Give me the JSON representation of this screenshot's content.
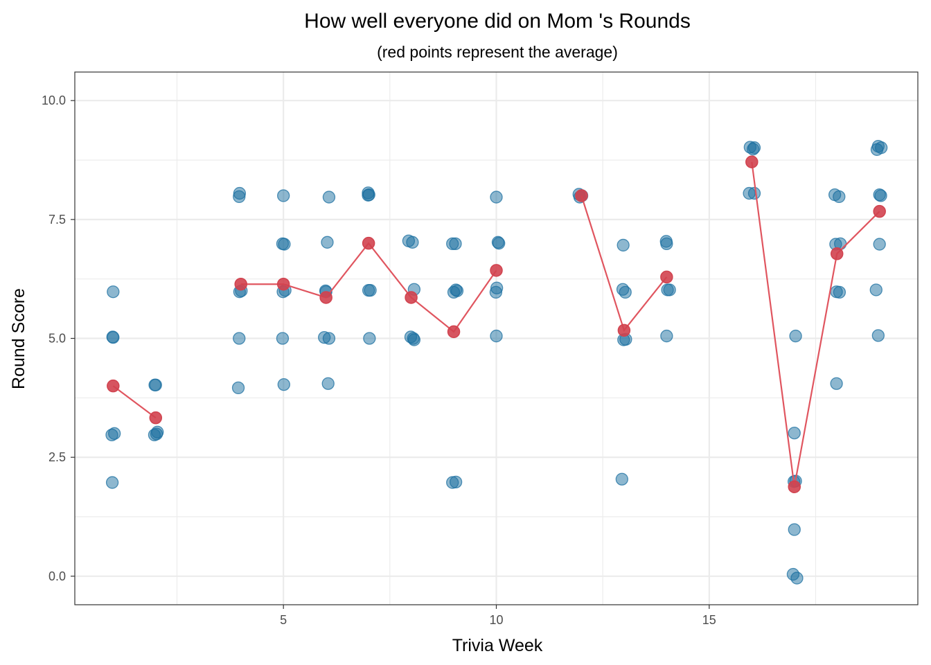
{
  "chart_data": {
    "type": "scatter",
    "title": "How well everyone did on Mom 's Rounds",
    "subtitle": "(red points represent the average)",
    "xlabel": "Trivia Week",
    "ylabel": "Round Score",
    "xlim": [
      0.1,
      19.9
    ],
    "ylim": [
      -0.6,
      10.6
    ],
    "x_ticks": [
      5,
      10,
      15
    ],
    "x_tick_labels": [
      "5",
      "10",
      "15"
    ],
    "y_ticks": [
      0,
      2.5,
      5,
      7.5,
      10
    ],
    "y_tick_labels": [
      "0.0",
      "2.5",
      "5.0",
      "7.5",
      "10.0"
    ],
    "grid": true,
    "legend": "none",
    "colors": {
      "points": "#1b6fa0",
      "average": "#d1434f",
      "average_line": "#e0555f",
      "grid": "#ebebeb",
      "panel_border": "#333333"
    },
    "series": [
      {
        "role": "scores",
        "points": [
          [
            1.0,
            5.98
          ],
          [
            0.99,
            5.03
          ],
          [
            1.0,
            5.02
          ],
          [
            1.03,
            3.0
          ],
          [
            0.97,
            2.97
          ],
          [
            0.98,
            1.97
          ],
          [
            2.0,
            4.02
          ],
          [
            1.98,
            4.02
          ],
          [
            2.04,
            3.03
          ],
          [
            1.97,
            2.97
          ],
          [
            2.02,
            2.99
          ],
          [
            3.97,
            8.05
          ],
          [
            3.96,
            7.98
          ],
          [
            3.97,
            5.98
          ],
          [
            4.01,
            6.0
          ],
          [
            3.96,
            5.0
          ],
          [
            3.94,
            3.96
          ],
          [
            5.0,
            8.0
          ],
          [
            5.02,
            6.98
          ],
          [
            4.98,
            6.99
          ],
          [
            4.99,
            5.98
          ],
          [
            5.04,
            6.01
          ],
          [
            4.98,
            5.0
          ],
          [
            5.01,
            4.03
          ],
          [
            6.07,
            7.97
          ],
          [
            6.03,
            7.02
          ],
          [
            5.99,
            6.0
          ],
          [
            6.0,
            5.98
          ],
          [
            5.96,
            5.02
          ],
          [
            6.07,
            5.0
          ],
          [
            6.05,
            4.05
          ],
          [
            6.99,
            8.06
          ],
          [
            7.01,
            8.02
          ],
          [
            6.99,
            8.01
          ],
          [
            7.0,
            6.01
          ],
          [
            7.04,
            6.01
          ],
          [
            7.02,
            5.0
          ],
          [
            7.94,
            7.05
          ],
          [
            8.03,
            7.02
          ],
          [
            8.07,
            6.03
          ],
          [
            7.99,
            5.03
          ],
          [
            8.07,
            4.97
          ],
          [
            8.05,
            5.0
          ],
          [
            8.97,
            6.99
          ],
          [
            9.04,
            6.99
          ],
          [
            9.0,
            5.97
          ],
          [
            9.08,
            6.0
          ],
          [
            9.05,
            6.02
          ],
          [
            8.97,
            1.97
          ],
          [
            9.05,
            1.98
          ],
          [
            10.0,
            7.97
          ],
          [
            10.06,
            7.0
          ],
          [
            10.04,
            7.02
          ],
          [
            9.99,
            5.97
          ],
          [
            10.01,
            6.06
          ],
          [
            10.0,
            5.05
          ],
          [
            11.94,
            8.03
          ],
          [
            11.96,
            7.97
          ],
          [
            12.01,
            8.0
          ],
          [
            12.98,
            6.96
          ],
          [
            12.97,
            6.03
          ],
          [
            13.03,
            5.97
          ],
          [
            13.04,
            4.98
          ],
          [
            12.99,
            4.97
          ],
          [
            12.95,
            2.04
          ],
          [
            13.99,
            7.04
          ],
          [
            14.0,
            6.99
          ],
          [
            14.02,
            6.02
          ],
          [
            14.07,
            6.02
          ],
          [
            14.0,
            5.05
          ],
          [
            15.96,
            9.02
          ],
          [
            16.06,
            9.01
          ],
          [
            16.03,
            8.98
          ],
          [
            15.94,
            8.05
          ],
          [
            16.06,
            8.05
          ],
          [
            17.03,
            5.05
          ],
          [
            17.0,
            3.01
          ],
          [
            16.99,
            1.99
          ],
          [
            17.03,
            2.0
          ],
          [
            17.0,
            0.98
          ],
          [
            16.97,
            0.04
          ],
          [
            17.06,
            -0.04
          ],
          [
            17.95,
            8.02
          ],
          [
            18.05,
            7.98
          ],
          [
            17.97,
            6.98
          ],
          [
            18.08,
            6.99
          ],
          [
            17.99,
            5.98
          ],
          [
            18.06,
            5.97
          ],
          [
            17.99,
            4.05
          ],
          [
            18.97,
            9.04
          ],
          [
            19.04,
            9.01
          ],
          [
            18.94,
            8.97
          ],
          [
            19.0,
            8.02
          ],
          [
            19.03,
            8.0
          ],
          [
            18.92,
            6.02
          ],
          [
            19.0,
            6.98
          ],
          [
            18.97,
            5.06
          ]
        ]
      },
      {
        "role": "average",
        "x": [
          1,
          2,
          4,
          5,
          6,
          7,
          8,
          9,
          10,
          12,
          13,
          14,
          16,
          17,
          18,
          19
        ],
        "y": [
          4.0,
          3.33,
          6.14,
          6.14,
          5.86,
          7.0,
          5.86,
          5.14,
          6.43,
          8.0,
          5.17,
          6.29,
          8.71,
          1.88,
          6.78,
          7.67
        ]
      }
    ]
  }
}
